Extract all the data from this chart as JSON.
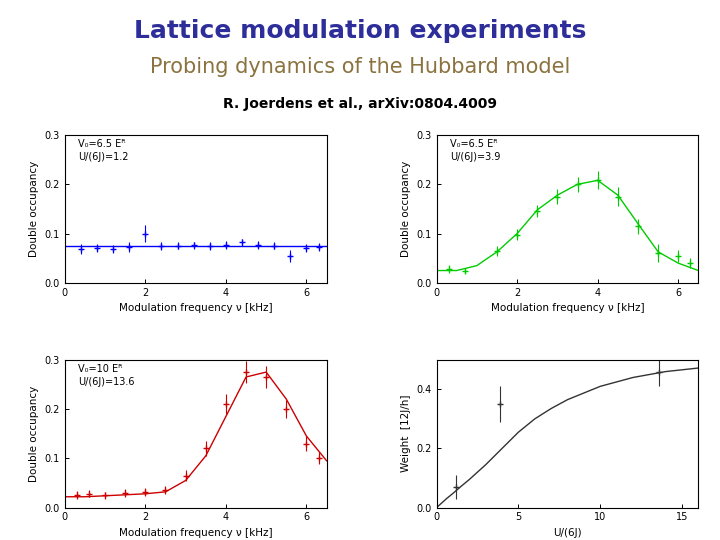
{
  "title1": "Lattice modulation experiments",
  "title2": "Probing dynamics of the Hubbard model",
  "citation": "R. Joerdens et al., arXiv:0804.4009",
  "title1_color": "#2E2E9A",
  "title2_color": "#8B7340",
  "citation_color": "#000000",
  "bg_color": "#ffffff",
  "panel_tl": {
    "label_line1": "V₀=6.5 Eᴿ",
    "label_line2": "U/(6J)=1.2",
    "color": "blue",
    "xlim": [
      0,
      6.5
    ],
    "ylim": [
      0.0,
      0.3
    ],
    "yticks": [
      0.0,
      0.1,
      0.2,
      0.3
    ],
    "xticks": [
      0,
      2,
      4,
      6
    ],
    "xlabel": "Modulation frequency ν [kHz]",
    "ylabel": "Double occupancy",
    "data_x": [
      0.4,
      0.8,
      1.2,
      1.6,
      2.0,
      2.4,
      2.8,
      3.2,
      3.6,
      4.0,
      4.4,
      4.8,
      5.2,
      5.6,
      6.0,
      6.3
    ],
    "data_y": [
      0.068,
      0.07,
      0.068,
      0.072,
      0.1,
      0.074,
      0.075,
      0.076,
      0.075,
      0.077,
      0.082,
      0.076,
      0.075,
      0.054,
      0.07,
      0.073
    ],
    "data_yerr": [
      0.01,
      0.008,
      0.008,
      0.01,
      0.018,
      0.008,
      0.007,
      0.007,
      0.008,
      0.008,
      0.008,
      0.008,
      0.007,
      0.012,
      0.008,
      0.008
    ],
    "fit_x": [
      0.0,
      6.5
    ],
    "fit_y": [
      0.075,
      0.075
    ]
  },
  "panel_tr": {
    "label_line1": "V₀=6.5 Eᴿ",
    "label_line2": "U/(6J)=3.9",
    "color": "#00cc00",
    "xlim": [
      0,
      6.5
    ],
    "ylim": [
      0.0,
      0.3
    ],
    "yticks": [
      0.0,
      0.1,
      0.2,
      0.3
    ],
    "xticks": [
      0,
      2,
      4,
      6
    ],
    "xlabel": "Modulation frequency ν [kHz]",
    "ylabel": "Double occupancy",
    "data_x": [
      0.3,
      0.7,
      1.5,
      2.0,
      2.5,
      3.0,
      3.5,
      4.0,
      4.5,
      5.0,
      5.5,
      6.0,
      6.3
    ],
    "data_y": [
      0.028,
      0.025,
      0.065,
      0.098,
      0.145,
      0.175,
      0.2,
      0.208,
      0.175,
      0.115,
      0.06,
      0.055,
      0.04
    ],
    "data_yerr": [
      0.008,
      0.006,
      0.01,
      0.012,
      0.012,
      0.015,
      0.015,
      0.018,
      0.02,
      0.015,
      0.018,
      0.012,
      0.01
    ],
    "fit_x": [
      0.0,
      0.5,
      1.0,
      1.5,
      2.0,
      2.5,
      3.0,
      3.5,
      4.0,
      4.5,
      5.0,
      5.5,
      6.0,
      6.5
    ],
    "fit_y": [
      0.025,
      0.025,
      0.035,
      0.063,
      0.1,
      0.148,
      0.178,
      0.2,
      0.208,
      0.178,
      0.12,
      0.063,
      0.04,
      0.025
    ]
  },
  "panel_bl": {
    "label_line1": "V₀=10 Eᴿ",
    "label_line2": "U/(6J)=13.6",
    "color": "#cc0000",
    "xlim": [
      0,
      6.5
    ],
    "ylim": [
      0.0,
      0.3
    ],
    "yticks": [
      0.0,
      0.1,
      0.2,
      0.3
    ],
    "xticks": [
      0,
      2,
      4,
      6
    ],
    "xlabel": "Modulation frequency ν [kHz]",
    "ylabel": "Double occupancy",
    "data_x": [
      0.3,
      0.6,
      1.0,
      1.5,
      2.0,
      2.5,
      3.0,
      3.5,
      4.0,
      4.5,
      5.0,
      5.5,
      6.0,
      6.3
    ],
    "data_y": [
      0.025,
      0.028,
      0.025,
      0.03,
      0.032,
      0.035,
      0.065,
      0.12,
      0.21,
      0.275,
      0.265,
      0.2,
      0.13,
      0.1
    ],
    "data_yerr": [
      0.008,
      0.007,
      0.007,
      0.008,
      0.008,
      0.008,
      0.012,
      0.015,
      0.02,
      0.022,
      0.022,
      0.018,
      0.015,
      0.012
    ],
    "fit_x": [
      0.0,
      0.5,
      1.0,
      1.5,
      2.0,
      2.5,
      3.0,
      3.5,
      4.0,
      4.5,
      5.0,
      5.5,
      6.0,
      6.5
    ],
    "fit_y": [
      0.022,
      0.022,
      0.024,
      0.026,
      0.028,
      0.032,
      0.055,
      0.105,
      0.185,
      0.265,
      0.275,
      0.22,
      0.145,
      0.095
    ]
  },
  "panel_br": {
    "color": "#333333",
    "xlim": [
      0,
      16
    ],
    "ylim": [
      0.0,
      0.5
    ],
    "yticks": [
      0.0,
      0.2,
      0.4
    ],
    "xticks": [
      0,
      5,
      10,
      15
    ],
    "xlabel": "U/(6J)",
    "ylabel": "Weight  [12J/h]",
    "data_x": [
      1.2,
      3.9,
      13.6
    ],
    "data_y": [
      0.07,
      0.35,
      0.46
    ],
    "data_yerr": [
      0.04,
      0.06,
      0.05
    ],
    "fit_x": [
      0.0,
      0.3,
      0.6,
      1.0,
      1.5,
      2.0,
      3.0,
      4.0,
      5.0,
      6.0,
      7.0,
      8.0,
      10.0,
      12.0,
      14.0,
      16.0
    ],
    "fit_y": [
      0.0,
      0.015,
      0.03,
      0.048,
      0.072,
      0.095,
      0.145,
      0.2,
      0.255,
      0.3,
      0.335,
      0.365,
      0.41,
      0.44,
      0.46,
      0.472
    ]
  }
}
